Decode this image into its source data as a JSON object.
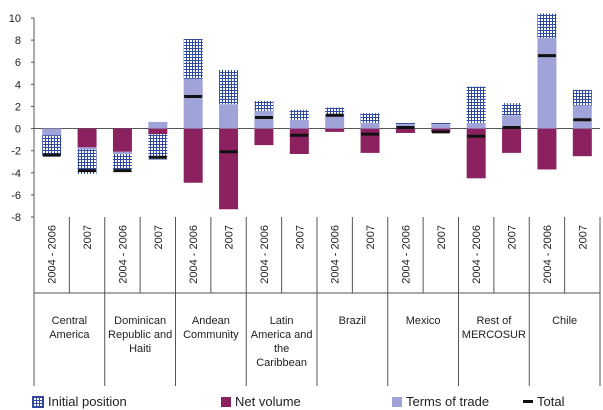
{
  "chart_data": {
    "type": "bar",
    "stacked": true,
    "ylim": [
      -8,
      10
    ],
    "yticks": [
      -8,
      -6,
      -4,
      -2,
      0,
      2,
      4,
      6,
      8,
      10
    ],
    "groups": [
      {
        "label": "Central America",
        "periods": [
          "2004 - 2006",
          "2007"
        ]
      },
      {
        "label": "Dominican Republic and Haiti",
        "periods": [
          "2004 - 2006",
          "2007"
        ]
      },
      {
        "label": "Andean Community",
        "periods": [
          "2004 - 2006",
          "2007"
        ]
      },
      {
        "label": "Latin America and the Caribbean",
        "periods": [
          "2004 - 2006",
          "2007"
        ]
      },
      {
        "label": "Brazil",
        "periods": [
          "2004 - 2006",
          "2007"
        ]
      },
      {
        "label": "Mexico",
        "periods": [
          "2004 - 2006",
          "2007"
        ]
      },
      {
        "label": "Rest of MERCOSUR",
        "periods": [
          "2004 - 2006",
          "2007"
        ]
      },
      {
        "label": "Chile",
        "periods": [
          "2004 - 2006",
          "2007"
        ]
      }
    ],
    "group_label_lines": [
      [
        "Central",
        "America"
      ],
      [
        "Dominican",
        "Republic and",
        "Haiti"
      ],
      [
        "Andean",
        "Community"
      ],
      [
        "Latin",
        "America and",
        "the",
        "Caribbean"
      ],
      [
        "Brazil"
      ],
      [
        "Mexico"
      ],
      [
        "Rest of",
        "MERCOSUR"
      ],
      [
        "Chile"
      ]
    ],
    "series": [
      {
        "name": "Initial position",
        "values": [
          -1.8,
          -2.2,
          -1.6,
          -2.3,
          3.6,
          3.1,
          0.9,
          0.9,
          0.6,
          0.9,
          0.1,
          0.1,
          3.3,
          1.1,
          2.2,
          1.4
        ]
      },
      {
        "name": "Net volume",
        "values": [
          0.0,
          -1.7,
          -2.1,
          -0.5,
          -4.9,
          -7.3,
          -1.5,
          -2.3,
          -0.3,
          -2.2,
          -0.4,
          -0.3,
          -4.5,
          -2.2,
          -3.7,
          -2.5
        ]
      },
      {
        "name": "Terms of trade",
        "values": [
          -0.6,
          -0.2,
          -0.2,
          0.6,
          4.5,
          2.2,
          1.6,
          0.8,
          1.3,
          0.5,
          0.4,
          0.4,
          0.5,
          1.2,
          8.2,
          2.1
        ]
      },
      {
        "name": "Total",
        "values": [
          -2.4,
          -3.8,
          -3.8,
          -2.6,
          2.9,
          -2.1,
          1.0,
          -0.6,
          1.2,
          -0.5,
          0.1,
          -0.3,
          -0.7,
          0.1,
          6.6,
          0.8
        ]
      }
    ],
    "colors": {
      "Initial position": "#2f4aa0",
      "Net volume": "#8c2160",
      "Terms of trade": "#9fa3d8",
      "Total": "#111111"
    },
    "legend_position": "bottom"
  }
}
